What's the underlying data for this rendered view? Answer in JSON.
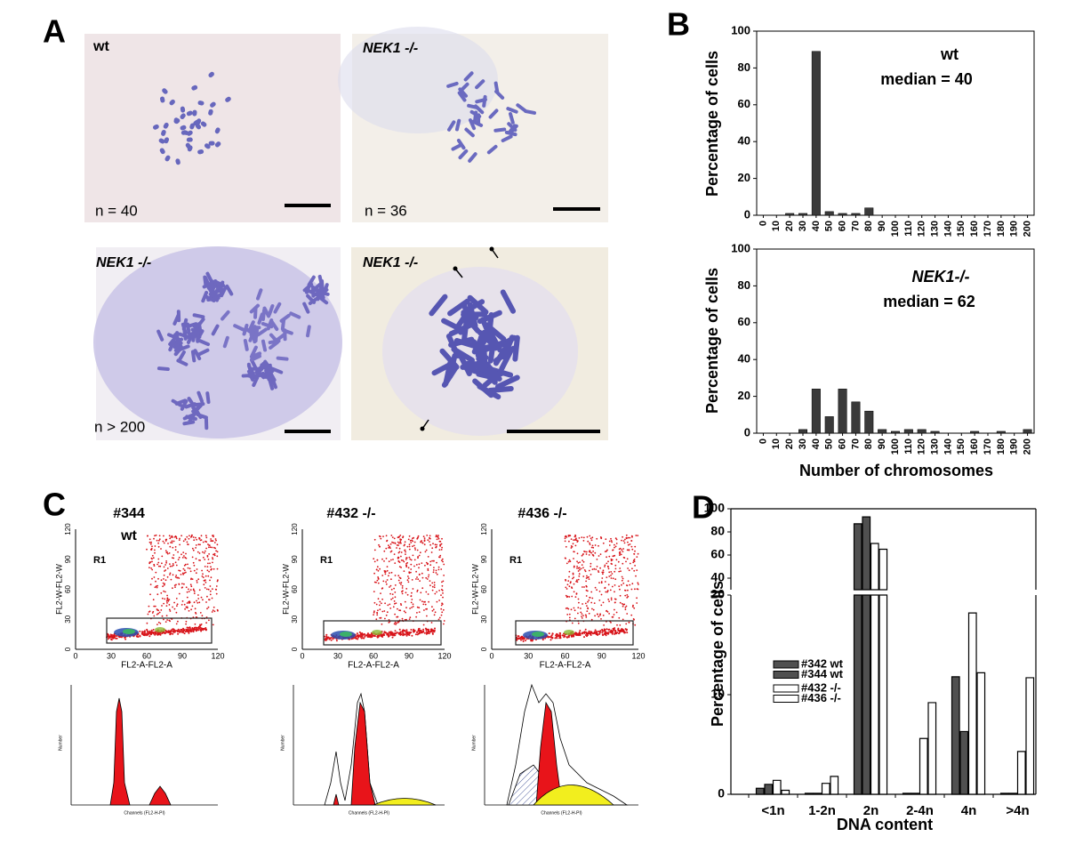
{
  "chart_data": [
    {
      "type": "bar",
      "ylabel": "Percentage of cells",
      "annotations": [
        "wt",
        "median = 40"
      ],
      "categories": [
        "0",
        "10",
        "20",
        "30",
        "40",
        "50",
        "60",
        "70",
        "80",
        "90",
        "100",
        "110",
        "120",
        "130",
        "140",
        "150",
        "160",
        "170",
        "180",
        "190",
        "200"
      ],
      "values": [
        0,
        0,
        1,
        1,
        89,
        2,
        1,
        1,
        4,
        0,
        0,
        0,
        0,
        0,
        0,
        0,
        0,
        0,
        0,
        0,
        0
      ],
      "color": "#3a3a3a",
      "ylim": [
        0,
        100
      ],
      "yticks": [
        0,
        20,
        40,
        60,
        80,
        100
      ]
    },
    {
      "type": "bar",
      "ylabel": "Percentage of cells",
      "xlabel": "Number of chromosomes",
      "annotations": [
        "NEK1-/-",
        "median = 62"
      ],
      "categories": [
        "0",
        "10",
        "20",
        "30",
        "40",
        "50",
        "60",
        "70",
        "80",
        "90",
        "100",
        "110",
        "120",
        "130",
        "140",
        "150",
        "160",
        "170",
        "180",
        "190",
        "200"
      ],
      "values": [
        0,
        0,
        0,
        2,
        24,
        9,
        24,
        17,
        12,
        2,
        1,
        2,
        2,
        1,
        0,
        0,
        1,
        0,
        1,
        0,
        2
      ],
      "color": "#3a3a3a",
      "ylim": [
        0,
        100
      ],
      "yticks": [
        0,
        20,
        40,
        60,
        80,
        100
      ]
    },
    {
      "type": "grouped_bar",
      "ylabel": "Percentage of cells",
      "xlabel": "DNA content",
      "categories": [
        "<1n",
        "1-2n",
        "2n",
        "2-4n",
        "4n",
        ">4n"
      ],
      "series": [
        {
          "name": "#342 wt",
          "color": "#505050",
          "values": [
            0.6,
            0.1,
            87,
            0.1,
            11.8,
            0.1
          ]
        },
        {
          "name": "#344 wt",
          "color": "#505050",
          "values": [
            1.0,
            0.1,
            93,
            0.1,
            6.3,
            0.1
          ]
        },
        {
          "name": "#432 -/-",
          "color": "#ffffff",
          "values": [
            1.4,
            1.1,
            70,
            5.6,
            18.2,
            4.3
          ]
        },
        {
          "name": "#436 -/-",
          "color": "#ffffff",
          "values": [
            0.4,
            1.8,
            65,
            9.2,
            12.2,
            11.7
          ]
        }
      ],
      "ylim": [
        0,
        20
      ],
      "yticks": [
        0,
        10,
        20
      ],
      "y_break": {
        "ylim": [
          30,
          100
        ],
        "yticks": [
          40,
          60,
          80,
          100
        ]
      },
      "legend": "left"
    }
  ],
  "figure": {
    "panel_labels": [
      "A",
      "B",
      "C",
      "D"
    ],
    "micrographs": [
      {
        "label": "wt",
        "count": "n = 40"
      },
      {
        "label": "NEK1 -/-",
        "count": "n = 36"
      },
      {
        "label": "NEK1 -/-",
        "count": "n > 200"
      },
      {
        "label": "NEK1 -/-"
      }
    ],
    "flow": [
      {
        "title": "#344",
        "subtitle": "wt",
        "gate": "R1"
      },
      {
        "title": "#432 -/-",
        "gate": "R1"
      },
      {
        "title": "#436 -/-",
        "gate": "R1"
      }
    ],
    "flow_axes": {
      "x_label": "FL2-A-FL2-A",
      "y_label": "FL2-W-FL2-W",
      "ticks": [
        "0",
        "30",
        "60",
        "90",
        "120"
      ]
    },
    "histogram_axes": {
      "x_label": "Channels (FL2-H-PI)",
      "y_label": "Number"
    }
  }
}
